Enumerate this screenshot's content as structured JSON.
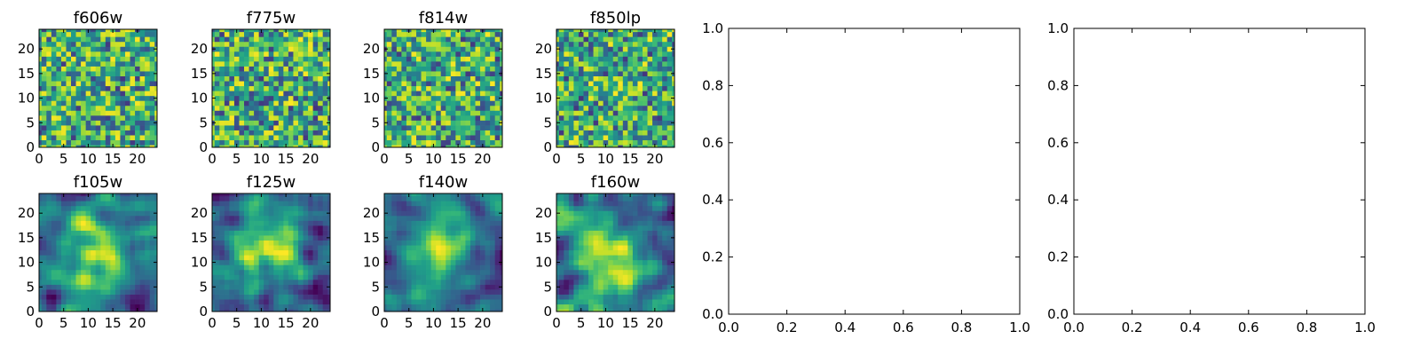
{
  "chart_data": [
    {
      "type": "heatmap",
      "title": "f606w",
      "x_ticks": [
        "0",
        "5",
        "10",
        "15",
        "20"
      ],
      "y_ticks": [
        "0",
        "5",
        "10",
        "15",
        "20"
      ],
      "grid_size": [
        25,
        25
      ],
      "colormap": "viridis"
    },
    {
      "type": "heatmap",
      "title": "f775w",
      "x_ticks": [
        "0",
        "5",
        "10",
        "15",
        "20"
      ],
      "y_ticks": [
        "0",
        "5",
        "10",
        "15",
        "20"
      ],
      "grid_size": [
        25,
        25
      ],
      "colormap": "viridis"
    },
    {
      "type": "heatmap",
      "title": "f814w",
      "x_ticks": [
        "0",
        "5",
        "10",
        "15",
        "20"
      ],
      "y_ticks": [
        "0",
        "5",
        "10",
        "15",
        "20"
      ],
      "grid_size": [
        25,
        25
      ],
      "colormap": "viridis"
    },
    {
      "type": "heatmap",
      "title": "f850lp",
      "x_ticks": [
        "0",
        "5",
        "10",
        "15",
        "20"
      ],
      "y_ticks": [
        "0",
        "5",
        "10",
        "15",
        "20"
      ],
      "grid_size": [
        25,
        25
      ],
      "colormap": "viridis"
    },
    {
      "type": "heatmap",
      "title": "f105w",
      "x_ticks": [
        "0",
        "5",
        "10",
        "15",
        "20"
      ],
      "y_ticks": [
        "0",
        "5",
        "10",
        "15",
        "20"
      ],
      "grid_size": [
        25,
        25
      ],
      "colormap": "viridis"
    },
    {
      "type": "heatmap",
      "title": "f125w",
      "x_ticks": [
        "0",
        "5",
        "10",
        "15",
        "20"
      ],
      "y_ticks": [
        "0",
        "5",
        "10",
        "15",
        "20"
      ],
      "grid_size": [
        25,
        25
      ],
      "colormap": "viridis"
    },
    {
      "type": "heatmap",
      "title": "f140w",
      "x_ticks": [
        "0",
        "5",
        "10",
        "15",
        "20"
      ],
      "y_ticks": [
        "0",
        "5",
        "10",
        "15",
        "20"
      ],
      "grid_size": [
        25,
        25
      ],
      "colormap": "viridis"
    },
    {
      "type": "heatmap",
      "title": "f160w",
      "x_ticks": [
        "0",
        "5",
        "10",
        "15",
        "20"
      ],
      "y_ticks": [
        "0",
        "5",
        "10",
        "15",
        "20"
      ],
      "grid_size": [
        25,
        25
      ],
      "colormap": "viridis"
    },
    {
      "type": "empty",
      "title": "",
      "xlim": [
        0,
        1
      ],
      "ylim": [
        0,
        1
      ],
      "x_ticks": [
        "0.0",
        "0.2",
        "0.4",
        "0.6",
        "0.8",
        "1.0"
      ],
      "y_ticks": [
        "0.0",
        "0.2",
        "0.4",
        "0.6",
        "0.8",
        "1.0"
      ]
    },
    {
      "type": "empty",
      "title": "",
      "xlim": [
        0,
        1
      ],
      "ylim": [
        0,
        1
      ],
      "x_ticks": [
        "0.0",
        "0.2",
        "0.4",
        "0.6",
        "0.8",
        "1.0"
      ],
      "y_ticks": [
        "0.0",
        "0.2",
        "0.4",
        "0.6",
        "0.8",
        "1.0"
      ]
    }
  ]
}
